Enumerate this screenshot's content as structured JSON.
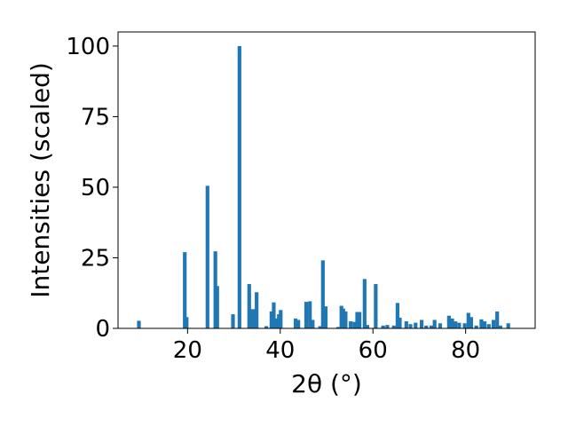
{
  "chart_data": {
    "type": "bar",
    "title": "",
    "xlabel": "2θ (°)",
    "ylabel": "Intensities (scaled)",
    "xlim": [
      5,
      95
    ],
    "ylim": [
      0,
      105
    ],
    "x_ticks": [
      20,
      40,
      60,
      80
    ],
    "y_ticks": [
      0,
      25,
      50,
      75,
      100
    ],
    "grid": false,
    "legend": "none",
    "bar_color": "#1f77b4",
    "bar_width": 0.8,
    "series": [
      {
        "x": [
          9.5,
          19.4,
          19.8,
          24.3,
          26.0,
          26.4,
          29.8,
          31.2,
          33.3,
          33.9,
          34.5,
          34.9,
          37.0,
          38.1,
          38.6,
          39.2,
          39.7,
          40.1,
          43.3,
          43.9,
          45.6,
          46.4,
          47.0,
          48.6,
          49.2,
          49.8,
          52.5,
          53.2,
          53.6,
          54.1,
          55.2,
          56.0,
          56.6,
          57.1,
          58.2,
          58.8,
          60.6,
          62.2,
          63.1,
          64.5,
          65.3,
          65.8,
          67.2,
          68.1,
          69.2,
          70.5,
          71.5,
          72.6,
          73.3,
          74.5,
          76.4,
          77.1,
          77.8,
          78.6,
          79.8,
          80.6,
          81.2,
          82.3,
          83.4,
          84.1,
          85.0,
          86.0,
          86.8,
          87.5,
          89.2
        ],
        "y": [
          2.7,
          27.0,
          4.0,
          50.5,
          27.3,
          15.0,
          5.0,
          100.0,
          15.7,
          6.8,
          6.8,
          12.8,
          0.8,
          6.0,
          9.2,
          3.5,
          5.0,
          6.5,
          3.5,
          3.0,
          9.4,
          9.6,
          3.0,
          0.8,
          24.1,
          7.8,
          0.5,
          8.0,
          7.0,
          6.0,
          2.5,
          2.3,
          5.8,
          5.8,
          17.5,
          1.2,
          15.7,
          1.0,
          1.2,
          1.0,
          9.0,
          3.8,
          2.5,
          1.5,
          2.0,
          3.0,
          1.0,
          1.0,
          3.0,
          1.8,
          4.5,
          3.5,
          2.5,
          2.0,
          1.8,
          5.5,
          4.0,
          1.0,
          3.2,
          2.5,
          1.5,
          3.0,
          6.0,
          1.0,
          1.8
        ]
      }
    ]
  }
}
